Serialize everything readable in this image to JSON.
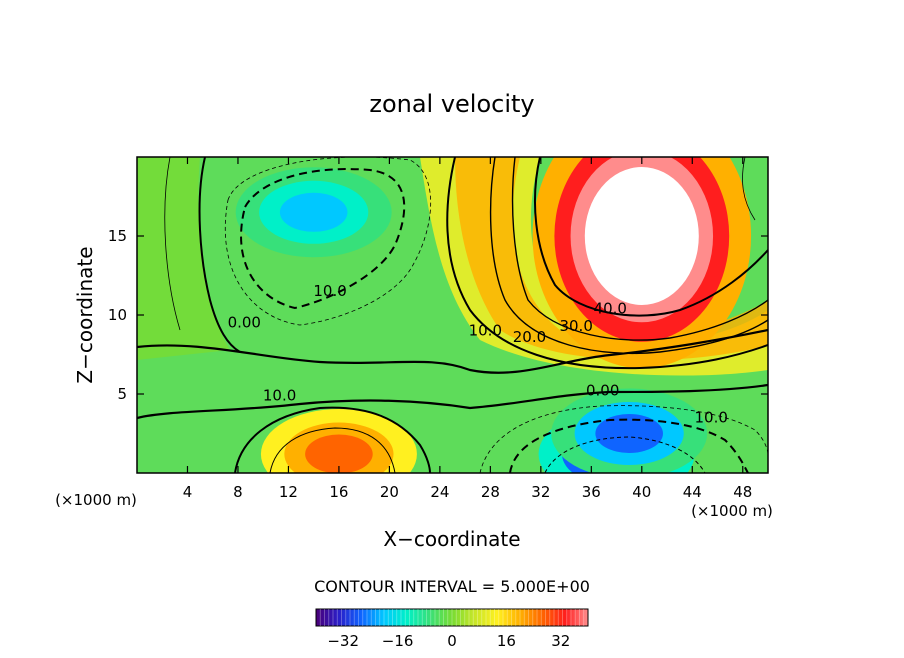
{
  "chart_data": {
    "type": "heatmap",
    "title": "zonal velocity",
    "xlabel": "X−coordinate",
    "ylabel": "Z−coordinate",
    "x_unit_left": "(×1000 m)",
    "x_unit_right": "(×1000 m)",
    "xlim": [
      0,
      50
    ],
    "ylim": [
      0,
      20
    ],
    "x_ticks": [
      4,
      8,
      12,
      16,
      20,
      24,
      28,
      32,
      36,
      40,
      44,
      48
    ],
    "y_ticks": [
      5,
      10,
      15
    ],
    "contour_interval_text": "CONTOUR INTERVAL = 5.000E+00",
    "colorbar": {
      "min": -40,
      "max": 40,
      "ticks": [
        -32,
        -16,
        0,
        16,
        32
      ]
    },
    "colormap": [
      "#4b0078",
      "#2a1ec8",
      "#0f64ff",
      "#00c8ff",
      "#00f0c8",
      "#37e07a",
      "#78dc32",
      "#c8e628",
      "#fff020",
      "#ffb000",
      "#ff6400",
      "#ff1e1e",
      "#ff8c8c",
      "#ffffff"
    ],
    "features": [
      {
        "x": 38,
        "y": 1.2,
        "value": -35
      },
      {
        "x": 39,
        "y": 2.5,
        "value": -25
      },
      {
        "x": 14,
        "y": 16.5,
        "value": -18
      },
      {
        "x": 16,
        "y": 1.2,
        "value": 28
      },
      {
        "x": 40,
        "y": 15,
        "value": 50
      }
    ],
    "contour_labels": [
      {
        "text": "0.00",
        "x": 8.5,
        "y": 9.2
      },
      {
        "text": "10.0",
        "x": 15.3,
        "y": 11.2
      },
      {
        "text": "10.0",
        "x": 11.3,
        "y": 4.6
      },
      {
        "text": "10.0",
        "x": 27.6,
        "y": 8.7
      },
      {
        "text": "20.0",
        "x": 31.1,
        "y": 8.3
      },
      {
        "text": "30.0",
        "x": 34.8,
        "y": 9.0
      },
      {
        "text": "40.0",
        "x": 37.5,
        "y": 10.1
      },
      {
        "text": "0.00",
        "x": 36.9,
        "y": 4.9
      },
      {
        "text": "10.0",
        "x": 45.5,
        "y": 3.2
      }
    ]
  }
}
